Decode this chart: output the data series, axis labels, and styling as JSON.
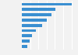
{
  "values": [
    30.3,
    20.5,
    17.8,
    15.2,
    12.1,
    8.4,
    6.2,
    4.8,
    3.5
  ],
  "bar_color": "#3a8fd1",
  "background_color": "#f2f2f2",
  "plot_bg_color": "#f2f2f2",
  "grid_color": "#ffffff",
  "xlim": [
    0,
    33
  ],
  "bar_height": 0.55,
  "figsize": [
    1.0,
    0.71
  ],
  "dpi": 100
}
